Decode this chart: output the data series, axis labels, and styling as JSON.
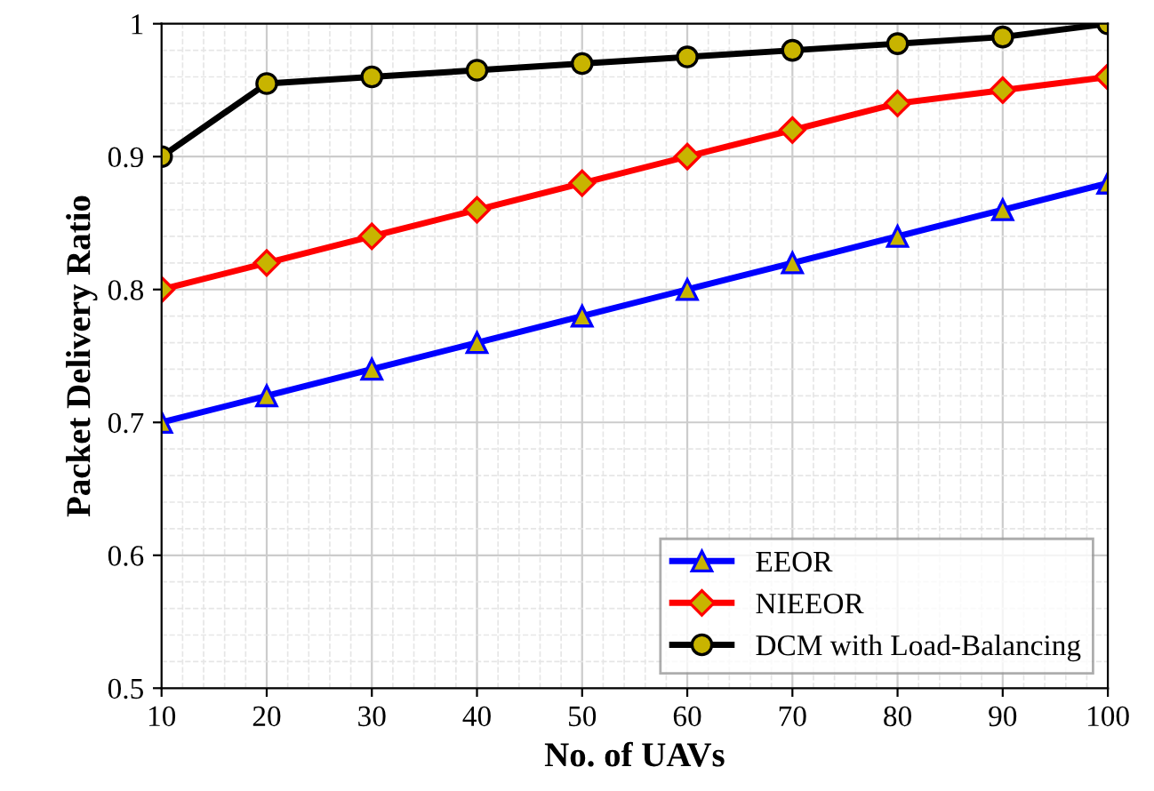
{
  "chart_data": {
    "type": "line",
    "xlabel": "No. of UAVs",
    "ylabel": "Packet Delivery Ratio",
    "x": [
      10,
      20,
      30,
      40,
      50,
      60,
      70,
      80,
      90,
      100
    ],
    "series": [
      {
        "name": "EEOR",
        "color": "#0000ff",
        "marker": "triangle",
        "values": [
          0.7,
          0.72,
          0.74,
          0.76,
          0.78,
          0.8,
          0.82,
          0.84,
          0.86,
          0.88
        ]
      },
      {
        "name": "NIEEOR",
        "color": "#ff0000",
        "marker": "diamond",
        "values": [
          0.8,
          0.82,
          0.84,
          0.86,
          0.88,
          0.9,
          0.92,
          0.94,
          0.95,
          0.96
        ]
      },
      {
        "name": "DCM with Load-Balancing",
        "color": "#000000",
        "marker": "circle",
        "values": [
          0.9,
          0.955,
          0.96,
          0.965,
          0.97,
          0.975,
          0.98,
          0.985,
          0.99,
          1.0
        ]
      }
    ],
    "xlim": [
      10,
      100
    ],
    "xticks": [
      10,
      20,
      30,
      40,
      50,
      60,
      70,
      80,
      90,
      100
    ],
    "ylim": [
      0.5,
      1.0
    ],
    "yticks": [
      {
        "value": 0.5,
        "label": "0.5"
      },
      {
        "value": 0.6,
        "label": "0.6"
      },
      {
        "value": 0.7,
        "label": "0.7"
      },
      {
        "value": 0.8,
        "label": "0.8"
      },
      {
        "value": 0.9,
        "label": "0.9"
      },
      {
        "value": 1.0,
        "label": "1"
      }
    ],
    "grid": true,
    "legend": "lower right",
    "line_style": "solid"
  }
}
